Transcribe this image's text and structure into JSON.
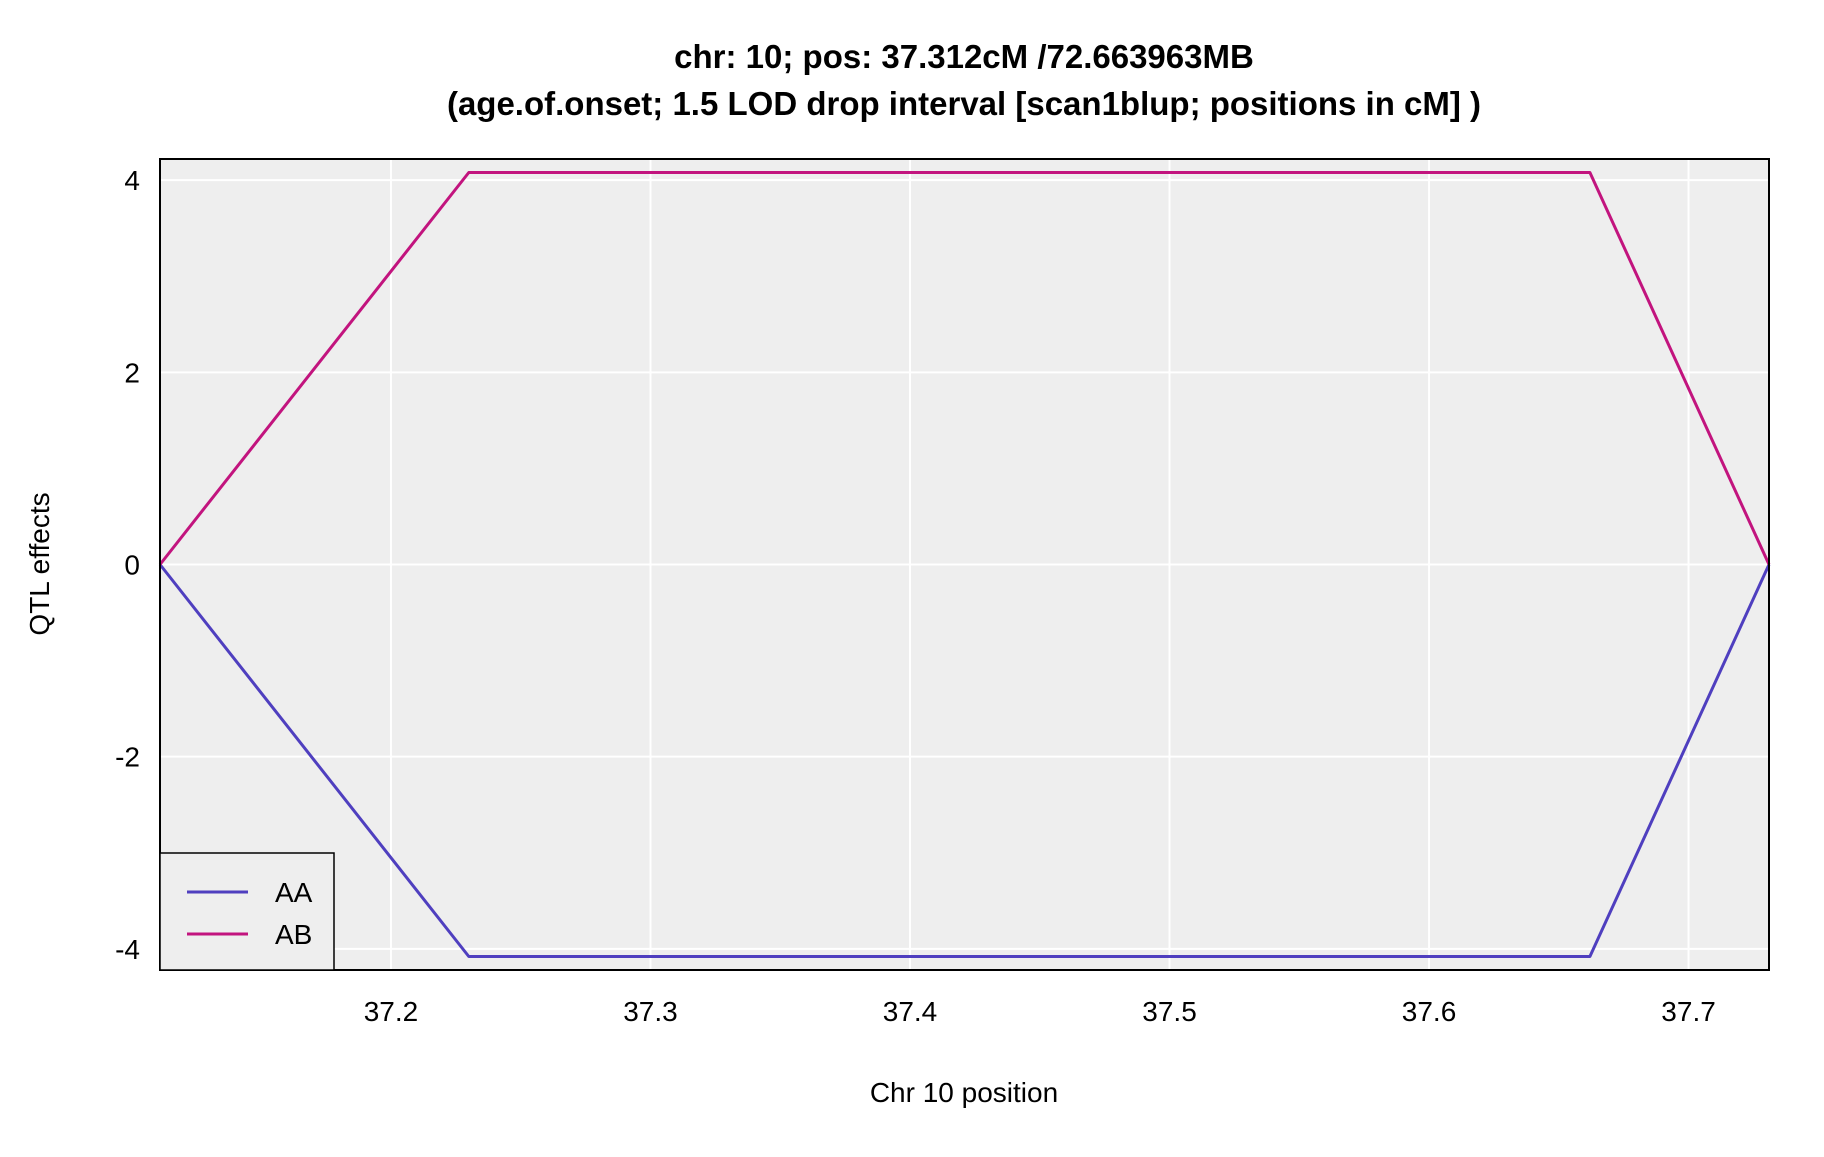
{
  "chart_data": {
    "type": "line",
    "title": "chr: 10; pos: 37.312cM /72.663963MB",
    "subtitle": "(age.of.onset; 1.5 LOD drop interval [scan1blup; positions in cM] )",
    "xlabel": "Chr 10 position",
    "ylabel": "QTL effects",
    "xlim": [
      37.111,
      37.731
    ],
    "ylim": [
      -4.22,
      4.22
    ],
    "x_ticks": [
      37.2,
      37.3,
      37.4,
      37.5,
      37.6,
      37.7
    ],
    "x_tick_labels": [
      "37.2",
      "37.3",
      "37.4",
      "37.5",
      "37.6",
      "37.7"
    ],
    "y_ticks": [
      -4,
      -2,
      0,
      2,
      4
    ],
    "y_tick_labels": [
      "-4",
      "-2",
      "0",
      "2",
      "4"
    ],
    "grid": true,
    "legend_position": "bottom-left",
    "background_color": "#eeeeee",
    "grid_color": "#ffffff",
    "series": [
      {
        "name": "AA",
        "color": "#4f3fbf",
        "x": [
          37.111,
          37.23,
          37.662,
          37.731
        ],
        "y": [
          0,
          -4.08,
          -4.08,
          0
        ]
      },
      {
        "name": "AB",
        "color": "#c2147e",
        "x": [
          37.111,
          37.23,
          37.662,
          37.731
        ],
        "y": [
          0,
          4.08,
          4.08,
          0
        ]
      }
    ]
  }
}
